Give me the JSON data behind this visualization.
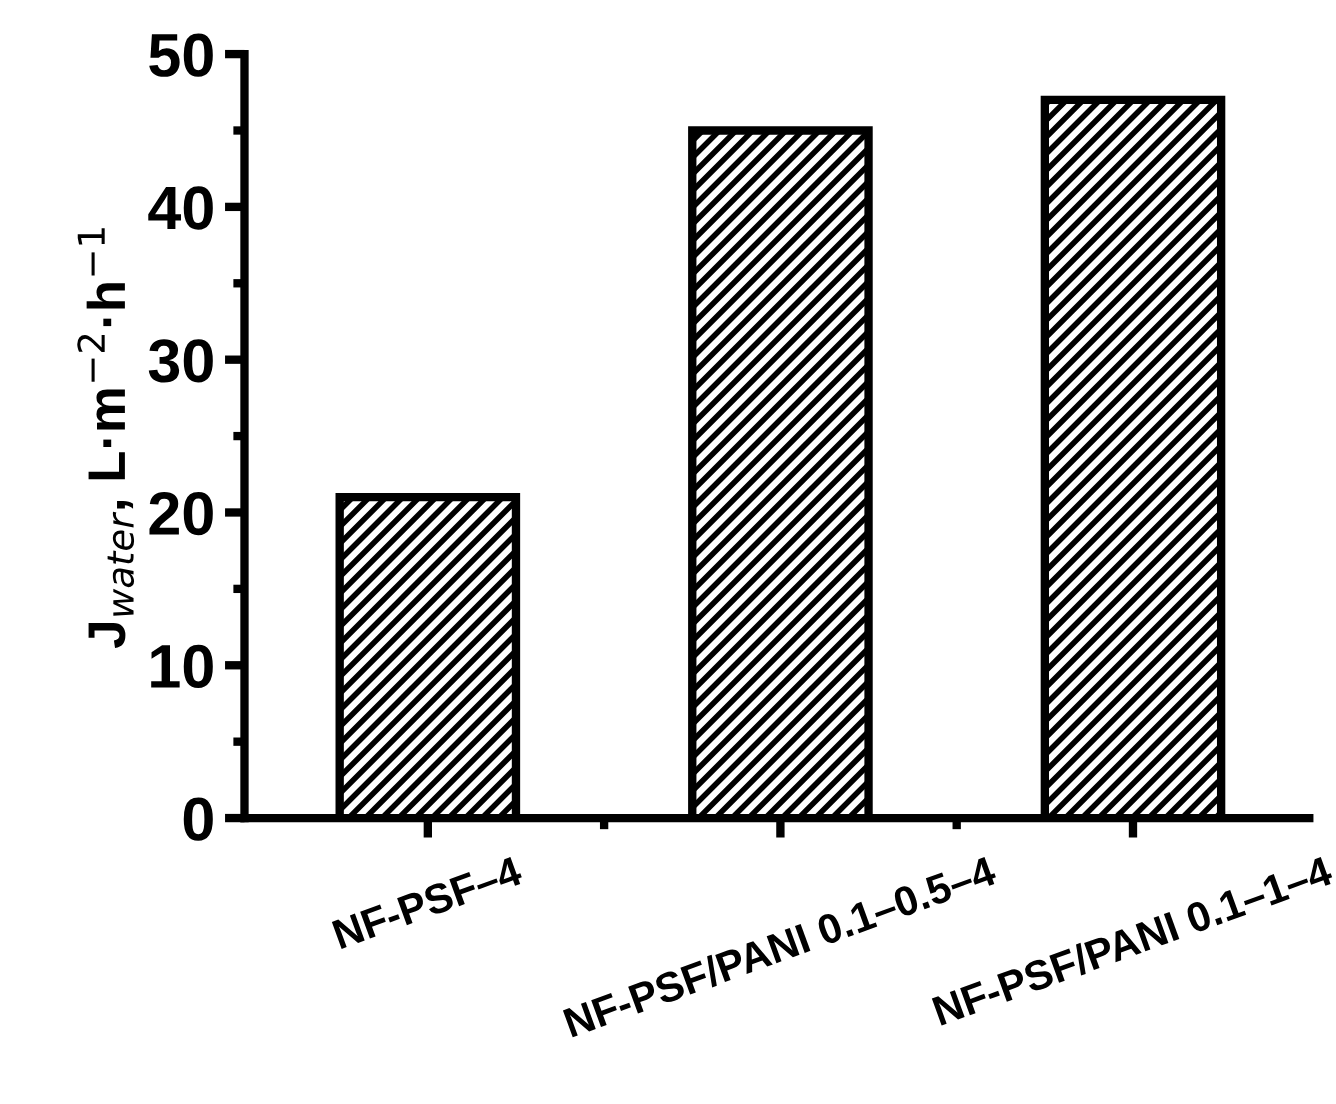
{
  "chart_data": {
    "type": "bar",
    "ylabel": "J$_{water}$, L·m$^{−2}$·h$^{−1}$",
    "categories": [
      "NF-PSF–4",
      "NF-PSF/PANI 0.1–0.5–4",
      "NF-PSF/PANI 0.1–1–4"
    ],
    "values": [
      21,
      45,
      47
    ],
    "color": "#000000",
    "ylim": [
      0,
      50
    ],
    "yticks": [
      0,
      10,
      20,
      30,
      40,
      50
    ],
    "grid": false
  }
}
